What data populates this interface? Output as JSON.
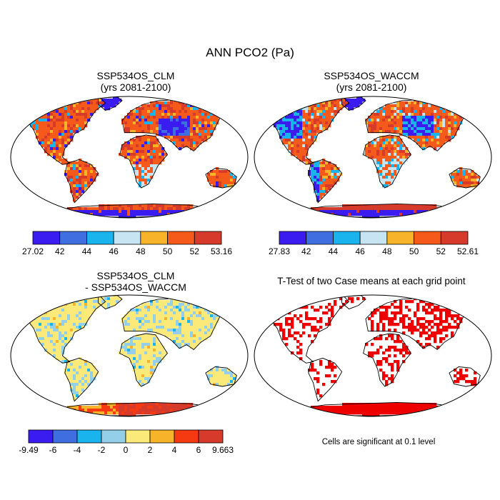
{
  "title": "ANN PCO2 (Pa)",
  "panels": [
    {
      "id": "clm",
      "title_line1": "SSP534OS_CLM",
      "title_line2": "(yrs 2081-2100)"
    },
    {
      "id": "waccm",
      "title_line1": "SSP534OS_WACCM",
      "title_line2": "(yrs 2081-2100)"
    },
    {
      "id": "diff",
      "title_line1": "SSP534OS_CLM",
      "title_line2": "- SSP534OS_WACCM"
    },
    {
      "id": "ttest",
      "title_line1": "T-Test of two Case means at each grid point",
      "title_line2": ""
    }
  ],
  "colorbars": [
    {
      "id": "clm",
      "labels": [
        "27.02",
        "42",
        "44",
        "46",
        "48",
        "50",
        "52",
        "53.16"
      ],
      "colors": [
        "#3a1cf0",
        "#3f6ee0",
        "#19b4ee",
        "#c6e4f2",
        "#f7b42a",
        "#f55a1a",
        "#d63a2a"
      ]
    },
    {
      "id": "waccm",
      "labels": [
        "27.83",
        "42",
        "44",
        "46",
        "48",
        "50",
        "52",
        "52.61"
      ],
      "colors": [
        "#3a1cf0",
        "#3f6ee0",
        "#19b4ee",
        "#c6e4f2",
        "#f7b42a",
        "#f55a1a",
        "#d63a2a"
      ]
    },
    {
      "id": "diff",
      "labels": [
        "-9.49",
        "-6",
        "-4",
        "-2",
        "0",
        "2",
        "4",
        "6",
        "9.663"
      ],
      "colors": [
        "#3a1cf0",
        "#3f6ee0",
        "#19b4ee",
        "#93cfe8",
        "#fbe97a",
        "#f7b42a",
        "#f53a12",
        "#d63a2a"
      ]
    }
  ],
  "note": "Cells are significant at 0.1 level",
  "palette": {
    "land_red": "#f0501c",
    "land_orange": "#f7b42a",
    "land_blue": "#3a1cf0",
    "land_light": "#19b4ee",
    "diff_yellow": "#fbe97a",
    "diff_blue": "#93cfe8",
    "sig_red": "#ee0000"
  }
}
